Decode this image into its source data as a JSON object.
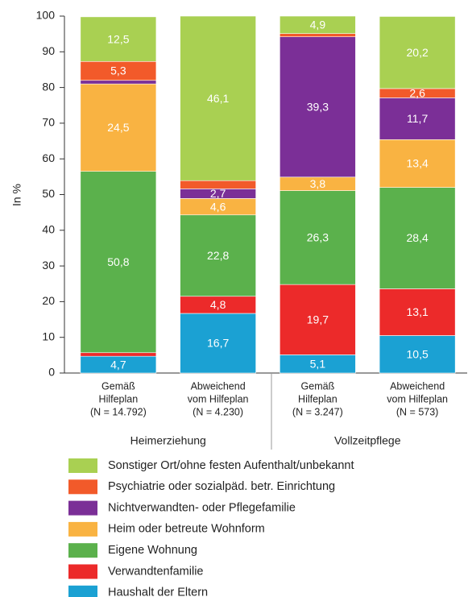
{
  "chart_data": {
    "type": "stacked-bar",
    "ylabel": "In %",
    "categories": [
      [
        "Gemäß",
        "Hilfeplan",
        "(N = 14.792)"
      ],
      [
        "Abweichend",
        "vom Hilfeplan",
        "(N = 4.230)"
      ],
      [
        "Gemäß",
        "Hilfeplan",
        "(N = 3.247)"
      ],
      [
        "Abweichend",
        "vom Hilfeplan",
        "(N = 573)"
      ]
    ],
    "groups": [
      "Heimerziehung",
      "Vollzeitpflege"
    ],
    "ylim": [
      0,
      100
    ],
    "yticks": [
      0,
      10,
      20,
      30,
      40,
      50,
      60,
      70,
      80,
      90,
      100
    ],
    "series": [
      {
        "name": "Haushalt der Eltern",
        "color": "#1ba1d3",
        "values": [
          4.7,
          16.7,
          5.1,
          10.5
        ],
        "value_labels": [
          "4,7",
          "16,7",
          "5,1",
          "10,5"
        ]
      },
      {
        "name": "Verwandtenfamilie",
        "color": "#ec2a2a",
        "values": [
          1.0,
          4.8,
          19.7,
          13.1
        ],
        "value_labels": [
          null,
          "4,8",
          "19,7",
          "13,1"
        ]
      },
      {
        "name": "Eigene Wohnung",
        "color": "#5bb14c",
        "values": [
          50.8,
          22.8,
          26.3,
          28.4
        ],
        "value_labels": [
          "50,8",
          "22,8",
          "26,3",
          "28,4"
        ]
      },
      {
        "name": "Heim oder betreute Wohnform",
        "color": "#f9b342",
        "values": [
          24.5,
          4.6,
          3.8,
          13.4
        ],
        "value_labels": [
          "24,5",
          "4,6",
          "3,8",
          "13,4"
        ]
      },
      {
        "name": "Nichtverwandten- oder Pflegefamilie",
        "color": "#7b2f97",
        "values": [
          1.0,
          2.7,
          39.3,
          11.7
        ],
        "value_labels": [
          null,
          "2,7",
          "39,3",
          "11,7"
        ]
      },
      {
        "name": "Psychiatrie oder sozialpäd. betr. Einrichtung",
        "color": "#f25a2a",
        "values": [
          5.3,
          2.3,
          0.9,
          2.6
        ],
        "value_labels": [
          "5,3",
          null,
          null,
          "2,6"
        ]
      },
      {
        "name": "Sonstiger Ort/ohne festen Aufenthalt/unbekannt",
        "color": "#a9d052",
        "values": [
          12.5,
          46.1,
          4.9,
          20.2
        ],
        "value_labels": [
          "12,5",
          "46,1",
          "4,9",
          "20,2"
        ]
      }
    ]
  }
}
